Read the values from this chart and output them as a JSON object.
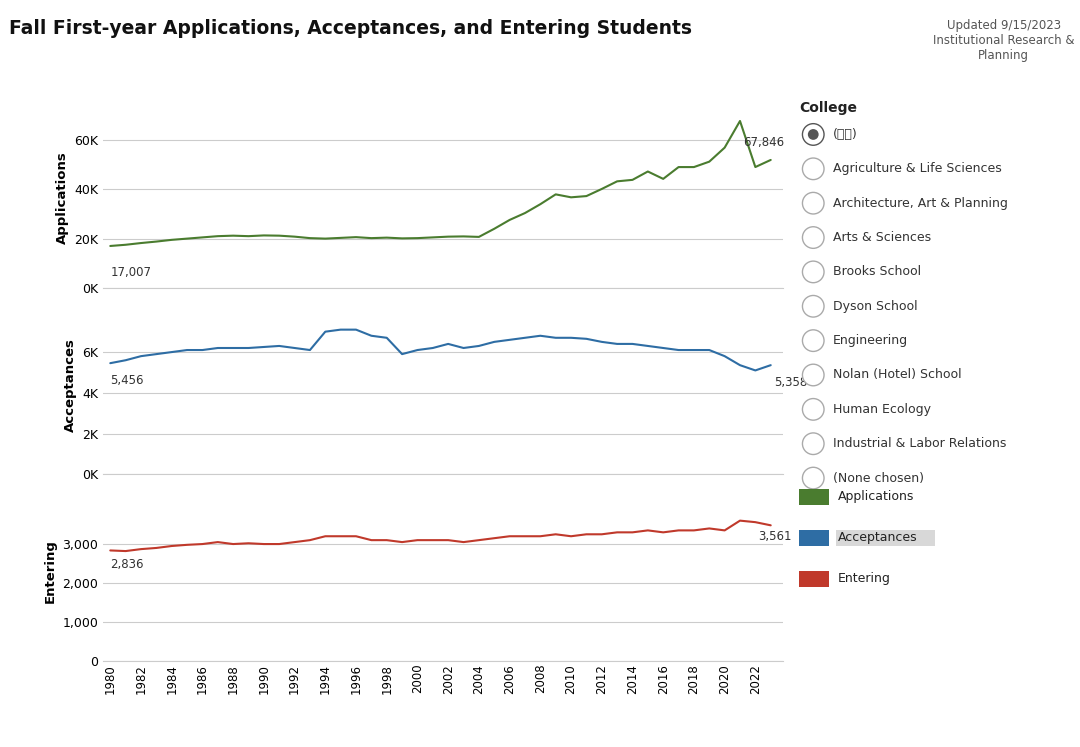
{
  "title": "Fall First-year Applications, Acceptances, and Entering Students",
  "subtitle": "Updated 9/15/2023\nInstitutional Research &\nPlanning",
  "years": [
    1980,
    1981,
    1982,
    1983,
    1984,
    1985,
    1986,
    1987,
    1988,
    1989,
    1990,
    1991,
    1992,
    1993,
    1994,
    1995,
    1996,
    1997,
    1998,
    1999,
    2000,
    2001,
    2002,
    2003,
    2004,
    2005,
    2006,
    2007,
    2008,
    2009,
    2010,
    2011,
    2012,
    2013,
    2014,
    2015,
    2016,
    2017,
    2018,
    2019,
    2020,
    2021,
    2022,
    2023
  ],
  "applications": [
    17007,
    17500,
    18200,
    18800,
    19500,
    20000,
    20500,
    21000,
    21200,
    21000,
    21300,
    21200,
    20800,
    20200,
    20000,
    20300,
    20600,
    20200,
    20400,
    20100,
    20200,
    20500,
    20800,
    20900,
    20700,
    24000,
    27600,
    30400,
    34000,
    38000,
    36800,
    37300,
    40200,
    43300,
    43900,
    47300,
    44300,
    49100,
    49100,
    51300,
    57000,
    67846,
    49114,
    52000
  ],
  "acceptances": [
    5456,
    5600,
    5800,
    5900,
    6000,
    6100,
    6100,
    6200,
    6200,
    6200,
    6250,
    6300,
    6200,
    6100,
    7000,
    7100,
    7100,
    6800,
    6700,
    5900,
    6100,
    6200,
    6400,
    6200,
    6300,
    6500,
    6600,
    6700,
    6800,
    6700,
    6700,
    6650,
    6500,
    6400,
    6400,
    6300,
    6200,
    6100,
    6100,
    6100,
    5800,
    5358,
    5100,
    5358
  ],
  "entering": [
    2836,
    2820,
    2870,
    2900,
    2950,
    2980,
    3000,
    3050,
    3000,
    3020,
    3000,
    3000,
    3050,
    3100,
    3200,
    3200,
    3200,
    3100,
    3100,
    3050,
    3100,
    3100,
    3100,
    3050,
    3100,
    3150,
    3200,
    3200,
    3200,
    3250,
    3200,
    3250,
    3250,
    3300,
    3300,
    3350,
    3300,
    3350,
    3350,
    3400,
    3350,
    3600,
    3561,
    3480
  ],
  "app_color": "#4a7c2f",
  "acc_color": "#2e6da4",
  "ent_color": "#c0392b",
  "bg_color": "#ffffff",
  "grid_color": "#cccccc",
  "college_items": [
    "(全部)",
    "Agriculture & Life Sciences",
    "Architecture, Art & Planning",
    "Arts & Sciences",
    "Brooks School",
    "Dyson School",
    "Engineering",
    "Nolan (Hotel) School",
    "Human Ecology",
    "Industrial & Labor Relations",
    "(None chosen)"
  ],
  "legend_items": [
    "Applications",
    "Acceptances",
    "Entering"
  ],
  "legend_colors": [
    "#4a7c2f",
    "#2e6da4",
    "#c0392b"
  ]
}
